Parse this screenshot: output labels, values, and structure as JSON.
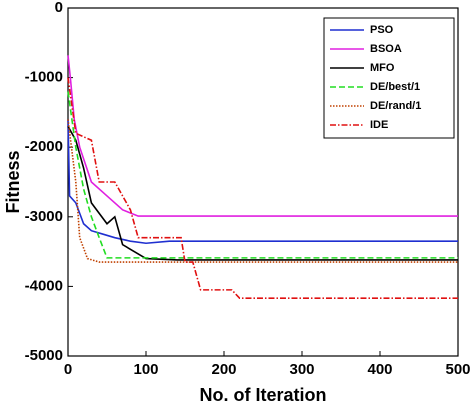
{
  "chart_data": {
    "type": "line",
    "xlabel": "No. of Iteration",
    "ylabel": "Fitness",
    "xlim": [
      0,
      500
    ],
    "ylim": [
      -5000,
      0
    ],
    "xticks": [
      0,
      100,
      200,
      300,
      400,
      500
    ],
    "yticks": [
      -5000,
      -4000,
      -3000,
      -2000,
      -1000,
      0
    ],
    "legend": "upper right",
    "series": [
      {
        "name": "PSO",
        "color": "#1f2fd0",
        "dash": "solid",
        "x": [
          0,
          2,
          10,
          20,
          30,
          45,
          60,
          80,
          100,
          130,
          500
        ],
        "values": [
          -1600,
          -2700,
          -2800,
          -3100,
          -3200,
          -3250,
          -3300,
          -3350,
          -3380,
          -3350,
          -3350
        ]
      },
      {
        "name": "BSOA",
        "color": "#e020e0",
        "dash": "solid",
        "x": [
          0,
          3,
          8,
          15,
          30,
          50,
          70,
          90,
          500
        ],
        "values": [
          -680,
          -1000,
          -1600,
          -2000,
          -2500,
          -2700,
          -2900,
          -2990,
          -2990
        ]
      },
      {
        "name": "MFO",
        "color": "#000000",
        "dash": "solid",
        "x": [
          0,
          10,
          20,
          30,
          50,
          60,
          70,
          100,
          140,
          500
        ],
        "values": [
          -1700,
          -1900,
          -2300,
          -2800,
          -3100,
          -3000,
          -3400,
          -3600,
          -3620,
          -3620
        ]
      },
      {
        "name": "DE/best/1",
        "color": "#22dd22",
        "dash": "dashed",
        "x": [
          0,
          10,
          20,
          30,
          40,
          50,
          500
        ],
        "values": [
          -1200,
          -2000,
          -2600,
          -3000,
          -3300,
          -3590,
          -3590
        ]
      },
      {
        "name": "DE/rand/1",
        "color": "#c04000",
        "dash": "dotted",
        "x": [
          0,
          10,
          15,
          25,
          40,
          500
        ],
        "values": [
          -1600,
          -2500,
          -3300,
          -3600,
          -3650,
          -3650
        ]
      },
      {
        "name": "IDE",
        "color": "#e01010",
        "dash": "dashdot",
        "x": [
          0,
          10,
          30,
          40,
          60,
          80,
          90,
          145,
          150,
          160,
          170,
          210,
          220,
          500
        ],
        "values": [
          -1000,
          -1800,
          -1900,
          -2500,
          -2500,
          -2900,
          -3300,
          -3300,
          -3650,
          -3650,
          -4050,
          -4050,
          -4170,
          -4170
        ]
      }
    ]
  }
}
